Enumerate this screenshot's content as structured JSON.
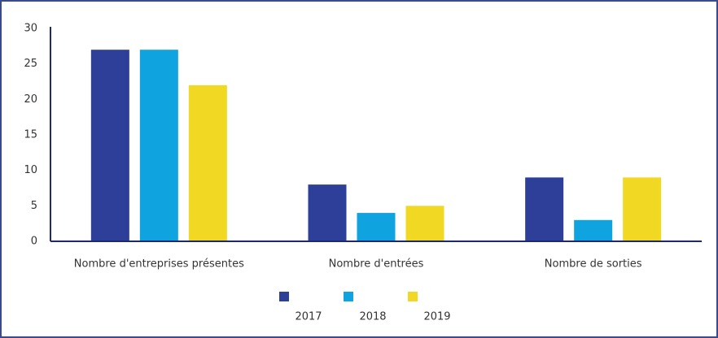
{
  "chart_data": {
    "type": "bar",
    "categories": [
      "Nombre d'entreprises présentes",
      "Nombre d'entrées",
      "Nombre de sorties"
    ],
    "series": [
      {
        "name": "2017",
        "color": "#2e3f9a",
        "values": [
          27,
          8,
          9
        ]
      },
      {
        "name": "2018",
        "color": "#0fa3e0",
        "values": [
          27,
          4,
          3
        ]
      },
      {
        "name": "2019",
        "color": "#f0d823",
        "values": [
          22,
          5,
          9
        ]
      }
    ],
    "ylim": [
      0,
      30
    ],
    "yticks": [
      0,
      5,
      10,
      15,
      20,
      25,
      30
    ],
    "grid": false
  }
}
